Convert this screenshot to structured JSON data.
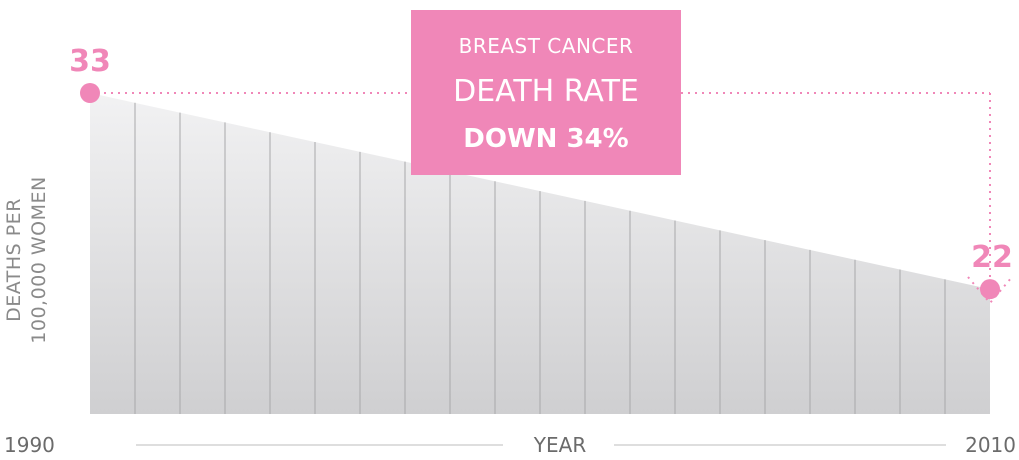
{
  "colors": {
    "accent": "#f087b8",
    "area_top": "#f2f2f3",
    "area_bottom": "#cfcfd1",
    "gridline": "#a8a8aa",
    "axis_text": "#6b6b6b"
  },
  "callout": {
    "line1": "BREAST CANCER",
    "line2": "DEATH RATE",
    "line3": "DOWN 34%"
  },
  "chart_data": {
    "type": "area",
    "x": [
      1990,
      2010
    ],
    "y": [
      33,
      22
    ],
    "point_labels": [
      "33",
      "22"
    ],
    "xlabel": "YEAR",
    "ylabel_lines": [
      "DEATHS PER",
      "100,000 WOMEN"
    ],
    "x_tick_labels": [
      "1990",
      "2010"
    ],
    "ylim": [
      15,
      33
    ],
    "vertical_gridlines": 19,
    "grid": false,
    "legend": "none"
  }
}
